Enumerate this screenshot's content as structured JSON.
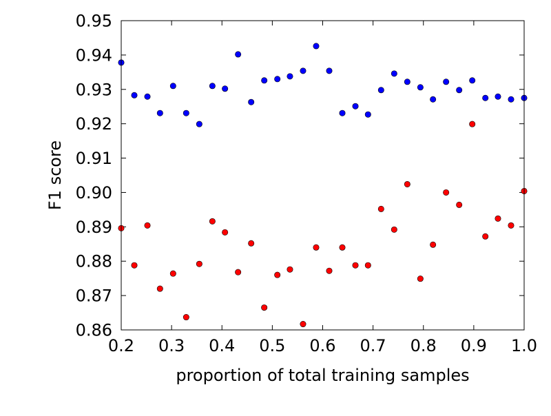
{
  "colors": {
    "series_0": "#0000ff",
    "series_1": "#ff0000",
    "frame": "#000000",
    "background": "#ffffff"
  },
  "chart_data": {
    "type": "scatter",
    "title": "",
    "xlabel": "proportion of total training samples",
    "ylabel": "F1 score",
    "xlim": [
      0.2,
      1.0
    ],
    "ylim": [
      0.86,
      0.95
    ],
    "grid": false,
    "xticks": [
      "0.2",
      "0.3",
      "0.4",
      "0.5",
      "0.6",
      "0.7",
      "0.8",
      "0.9",
      "1.0"
    ],
    "yticks": [
      "0.86",
      "0.87",
      "0.88",
      "0.89",
      "0.90",
      "0.91",
      "0.92",
      "0.93",
      "0.94",
      "0.95"
    ],
    "series": [
      {
        "color": "#0000ff",
        "points": [
          [
            0.2,
            0.9378
          ],
          [
            0.226,
            0.9283
          ],
          [
            0.252,
            0.9279
          ],
          [
            0.277,
            0.9231
          ],
          [
            0.303,
            0.931
          ],
          [
            0.329,
            0.9231
          ],
          [
            0.355,
            0.9199
          ],
          [
            0.381,
            0.931
          ],
          [
            0.406,
            0.9302
          ],
          [
            0.432,
            0.9402
          ],
          [
            0.458,
            0.9263
          ],
          [
            0.484,
            0.9326
          ],
          [
            0.51,
            0.933
          ],
          [
            0.535,
            0.9338
          ],
          [
            0.561,
            0.9354
          ],
          [
            0.587,
            0.9426
          ],
          [
            0.613,
            0.9354
          ],
          [
            0.639,
            0.9231
          ],
          [
            0.665,
            0.9251
          ],
          [
            0.69,
            0.9227
          ],
          [
            0.716,
            0.9298
          ],
          [
            0.742,
            0.9346
          ],
          [
            0.768,
            0.9322
          ],
          [
            0.794,
            0.9306
          ],
          [
            0.819,
            0.9271
          ],
          [
            0.845,
            0.9322
          ],
          [
            0.871,
            0.9298
          ],
          [
            0.897,
            0.9326
          ],
          [
            0.923,
            0.9275
          ],
          [
            0.948,
            0.9279
          ],
          [
            0.974,
            0.9271
          ],
          [
            1.0,
            0.9275
          ]
        ]
      },
      {
        "color": "#ff0000",
        "points": [
          [
            0.2,
            0.8896
          ],
          [
            0.226,
            0.8788
          ],
          [
            0.252,
            0.8904
          ],
          [
            0.277,
            0.872
          ],
          [
            0.303,
            0.8764
          ],
          [
            0.329,
            0.8637
          ],
          [
            0.355,
            0.8792
          ],
          [
            0.381,
            0.8916
          ],
          [
            0.406,
            0.8884
          ],
          [
            0.432,
            0.8768
          ],
          [
            0.458,
            0.8852
          ],
          [
            0.484,
            0.8665
          ],
          [
            0.51,
            0.876
          ],
          [
            0.535,
            0.8776
          ],
          [
            0.561,
            0.8617
          ],
          [
            0.587,
            0.884
          ],
          [
            0.613,
            0.8772
          ],
          [
            0.639,
            0.884
          ],
          [
            0.665,
            0.8788
          ],
          [
            0.69,
            0.8788
          ],
          [
            0.716,
            0.8952
          ],
          [
            0.742,
            0.8892
          ],
          [
            0.768,
            0.9024
          ],
          [
            0.794,
            0.8749
          ],
          [
            0.819,
            0.8848
          ],
          [
            0.845,
            0.9
          ],
          [
            0.871,
            0.8964
          ],
          [
            0.897,
            0.9199
          ],
          [
            0.923,
            0.8872
          ],
          [
            0.948,
            0.8924
          ],
          [
            0.974,
            0.8904
          ],
          [
            1.0,
            0.9004
          ]
        ]
      }
    ]
  }
}
